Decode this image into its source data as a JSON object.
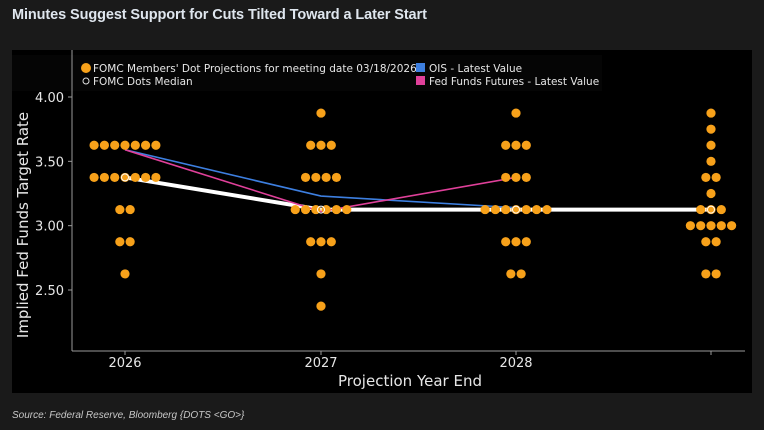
{
  "title": "Minutes Suggest Support for Cuts Tilted Toward a Later Start",
  "source": "Source: Federal Reserve, Bloomberg {DOTS <GO>}",
  "chart_data": {
    "type": "scatter",
    "title": "",
    "xlabel": "Projection Year End",
    "ylabel": "Implied Fed Funds Target Rate",
    "categories": [
      "2026",
      "2027",
      "2028",
      ""
    ],
    "ylim": [
      2.2,
      4.37
    ],
    "yticks": [
      "4.00",
      "3.50",
      "3.00",
      "2.50"
    ],
    "ytick_values": [
      4.0,
      3.5,
      3.0,
      2.5
    ],
    "grid": false,
    "legend_placement": "top-left",
    "legend": [
      {
        "label": "FOMC Members' Dot Projections for meeting date 03/18/2026",
        "marker": "dot",
        "color": "#f7a11a"
      },
      {
        "label": "FOMC Dots Median",
        "marker": "hollow-circle",
        "color": "#ffffff"
      },
      {
        "label": "OIS - Latest Value",
        "marker": "square",
        "color": "#3d7fe0"
      },
      {
        "label": "Fed Funds Futures - Latest Value",
        "marker": "square",
        "color": "#e0409a"
      }
    ],
    "dots": [
      {
        "category": "2026",
        "values": [
          3.625,
          3.625,
          3.625,
          3.625,
          3.625,
          3.625,
          3.625,
          3.375,
          3.375,
          3.375,
          3.375,
          3.375,
          3.375,
          3.375,
          3.125,
          3.125,
          2.875,
          2.875,
          2.625
        ]
      },
      {
        "category": "2027",
        "values": [
          3.875,
          3.625,
          3.625,
          3.625,
          3.375,
          3.375,
          3.375,
          3.375,
          3.125,
          3.125,
          3.125,
          3.125,
          3.125,
          3.125,
          2.875,
          2.875,
          2.875,
          2.625,
          2.375
        ]
      },
      {
        "category": "2028",
        "values": [
          3.875,
          3.625,
          3.625,
          3.625,
          3.375,
          3.375,
          3.375,
          3.125,
          3.125,
          3.125,
          3.125,
          3.125,
          3.125,
          3.125,
          2.875,
          2.875,
          2.875,
          2.625,
          2.625
        ]
      },
      {
        "category": "",
        "values": [
          3.875,
          3.75,
          3.625,
          3.5,
          3.375,
          3.375,
          3.25,
          3.125,
          3.125,
          3.125,
          3.0,
          3.0,
          3.0,
          3.0,
          3.0,
          2.875,
          2.875,
          2.625,
          2.625
        ]
      }
    ],
    "series": [
      {
        "name": "FOMC Dots Median",
        "color": "#ffffff",
        "values": [
          3.375,
          3.125,
          3.125,
          3.125
        ]
      },
      {
        "name": "OIS - Latest Value",
        "color": "#3d7fe0",
        "values": [
          3.59,
          3.23,
          3.14,
          null
        ]
      },
      {
        "name": "Fed Funds Futures - Latest Value",
        "color": "#e0409a",
        "values": [
          3.59,
          3.11,
          3.375,
          null
        ]
      }
    ]
  }
}
